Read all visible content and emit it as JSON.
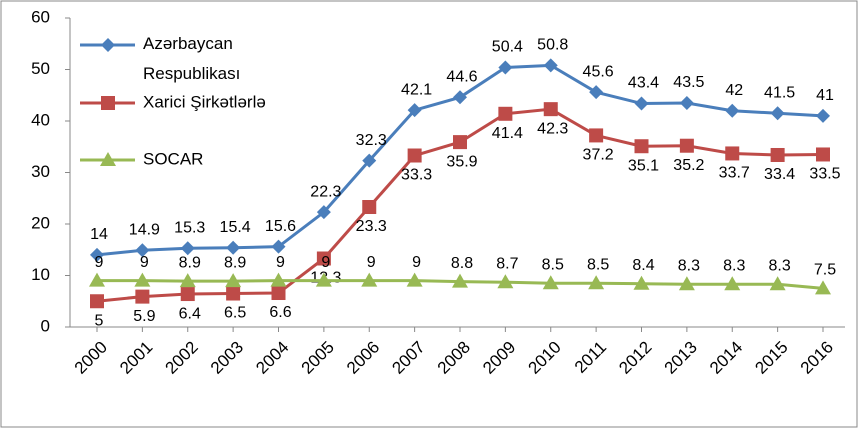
{
  "chart_data": {
    "type": "line",
    "categories": [
      "2000",
      "2001",
      "2002",
      "2003",
      "2004",
      "2005",
      "2006",
      "2007",
      "2008",
      "2009",
      "2010",
      "2011",
      "2012",
      "2013",
      "2014",
      "2015",
      "2016"
    ],
    "series": [
      {
        "name": "Azərbaycan Respublikası",
        "color": "#4a7ebb",
        "marker": "diamond",
        "values": [
          14,
          14.9,
          15.3,
          15.4,
          15.6,
          22.3,
          32.3,
          42.1,
          44.6,
          50.4,
          50.8,
          45.6,
          43.4,
          43.5,
          42,
          41.5,
          41
        ]
      },
      {
        "name": "Xarici Şirkətlərlə",
        "color": "#be4b48",
        "marker": "square",
        "values": [
          5,
          5.9,
          6.4,
          6.5,
          6.6,
          13.3,
          23.3,
          33.3,
          35.9,
          41.4,
          42.3,
          37.2,
          35.1,
          35.2,
          33.7,
          33.4,
          33.5
        ]
      },
      {
        "name": "SOCAR",
        "color": "#98b954",
        "marker": "triangle",
        "values": [
          9,
          9,
          8.9,
          8.9,
          9,
          9,
          9,
          9,
          8.8,
          8.7,
          8.5,
          8.5,
          8.4,
          8.3,
          8.3,
          8.3,
          7.5
        ]
      }
    ],
    "ylim": [
      0,
      60
    ],
    "yticks": [
      0,
      10,
      20,
      30,
      40,
      50,
      60
    ],
    "grid": false,
    "legend": "upper left"
  }
}
